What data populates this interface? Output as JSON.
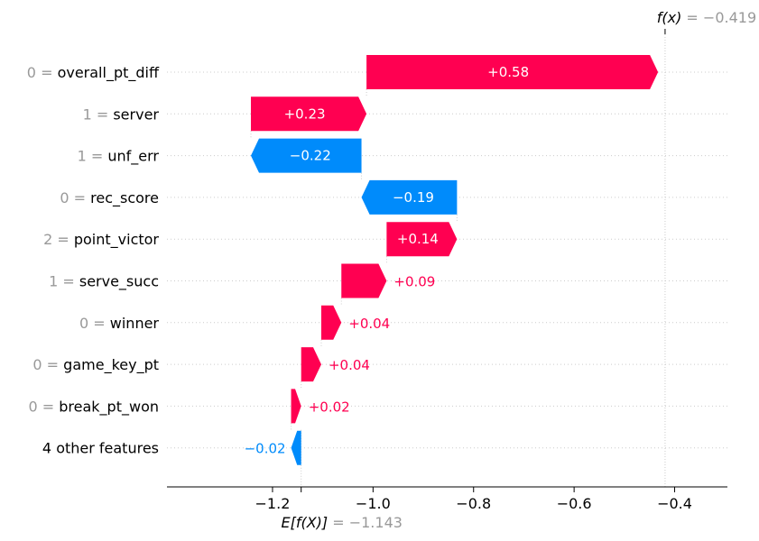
{
  "chart_data": {
    "type": "waterfall",
    "base_value": -1.143,
    "output_value": -0.419,
    "base_label": {
      "math": "E[f(X)]",
      "eq": " = ",
      "val": "−1.143"
    },
    "output_label": {
      "math": "f(x)",
      "eq": " = ",
      "val": "−0.419"
    },
    "xlim": [
      -1.41,
      -0.295
    ],
    "xticks": [
      {
        "value": -1.2,
        "label": "−1.2"
      },
      {
        "value": -1.0,
        "label": "−1.0"
      },
      {
        "value": -0.8,
        "label": "−0.8"
      },
      {
        "value": -0.6,
        "label": "−0.6"
      },
      {
        "value": -0.4,
        "label": "−0.4"
      }
    ],
    "features": [
      {
        "value_text": "0",
        "name": "overall_pt_diff",
        "contribution": 0.58,
        "label": "+0.58"
      },
      {
        "value_text": "1",
        "name": "server",
        "contribution": 0.23,
        "label": "+0.23"
      },
      {
        "value_text": "1",
        "name": "unf_err",
        "contribution": -0.22,
        "label": "−0.22"
      },
      {
        "value_text": "0",
        "name": "rec_score",
        "contribution": -0.19,
        "label": "−0.19"
      },
      {
        "value_text": "2",
        "name": "point_victor",
        "contribution": 0.14,
        "label": "+0.14"
      },
      {
        "value_text": "1",
        "name": "serve_succ",
        "contribution": 0.09,
        "label": "+0.09"
      },
      {
        "value_text": "0",
        "name": "winner",
        "contribution": 0.04,
        "label": "+0.04"
      },
      {
        "value_text": "0",
        "name": "game_key_pt",
        "contribution": 0.04,
        "label": "+0.04"
      },
      {
        "value_text": "0",
        "name": "break_pt_won",
        "contribution": 0.02,
        "label": "+0.02"
      },
      {
        "value_text": "",
        "name": "4 other features",
        "contribution": -0.02,
        "label": "−0.02"
      }
    ],
    "colors": {
      "positive": "#ff0051",
      "negative": "#008bfb",
      "feature_value": "#999999",
      "grid": "#cccccc",
      "axis": "#000000"
    }
  }
}
